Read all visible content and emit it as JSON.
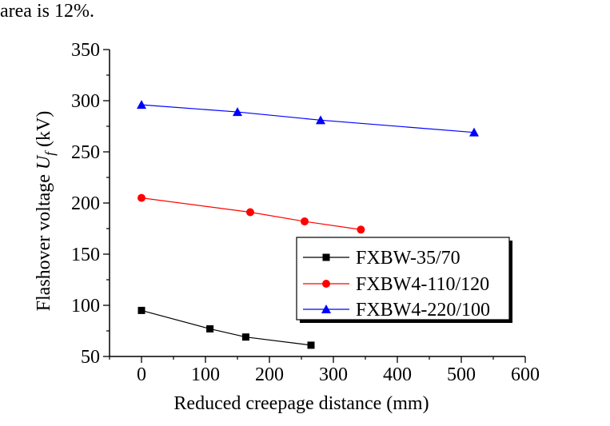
{
  "caption_fragment": "area is 12%.",
  "chart_data": {
    "type": "line",
    "xlabel": "Reduced creepage distance (mm)",
    "ylabel": "Flashover voltage U_f (kV)",
    "ylabel_parts": {
      "before": "Flashover voltage ",
      "symbol": "U",
      "subscript": "f",
      "after": " (kV)"
    },
    "xlim": [
      -50,
      600
    ],
    "ylim": [
      50,
      350
    ],
    "xticks": [
      0,
      100,
      200,
      300,
      400,
      500,
      600
    ],
    "yticks": [
      50,
      100,
      150,
      200,
      250,
      300,
      350
    ],
    "legend_position": "lower-right",
    "series": [
      {
        "name": "FXBW-35/70",
        "color": "#000000",
        "marker": "square",
        "x": [
          0,
          107,
          163,
          265
        ],
        "y": [
          95,
          77,
          69,
          61
        ]
      },
      {
        "name": "FXBW4-110/120",
        "color": "#ff0000",
        "marker": "circle",
        "x": [
          0,
          170,
          255,
          343
        ],
        "y": [
          205,
          191,
          182,
          174
        ]
      },
      {
        "name": "FXBW4-220/100",
        "color": "#0000ff",
        "marker": "triangle",
        "x": [
          0,
          150,
          280,
          520
        ],
        "y": [
          296,
          289,
          281,
          269
        ]
      }
    ]
  }
}
